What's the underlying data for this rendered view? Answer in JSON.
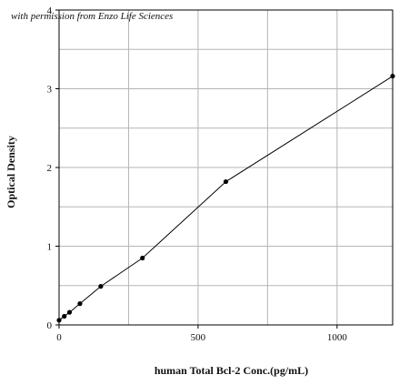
{
  "watermark": "with permission from Enzo Life Sciences",
  "chart_data": {
    "type": "line",
    "xlabel": "human Total Bcl-2 Conc.(pg/mL)",
    "ylabel": "Optical Density",
    "xlim": [
      0,
      1200
    ],
    "ylim": [
      0,
      4
    ],
    "xticks": [
      0,
      500,
      1000
    ],
    "yticks": [
      0,
      1,
      2,
      3,
      4
    ],
    "grid": true,
    "series": [
      {
        "x": [
          0,
          18.75,
          37.5,
          75,
          150,
          300,
          600,
          1200
        ],
        "y": [
          0.06,
          0.11,
          0.16,
          0.27,
          0.49,
          0.85,
          1.82,
          3.16
        ]
      }
    ]
  }
}
